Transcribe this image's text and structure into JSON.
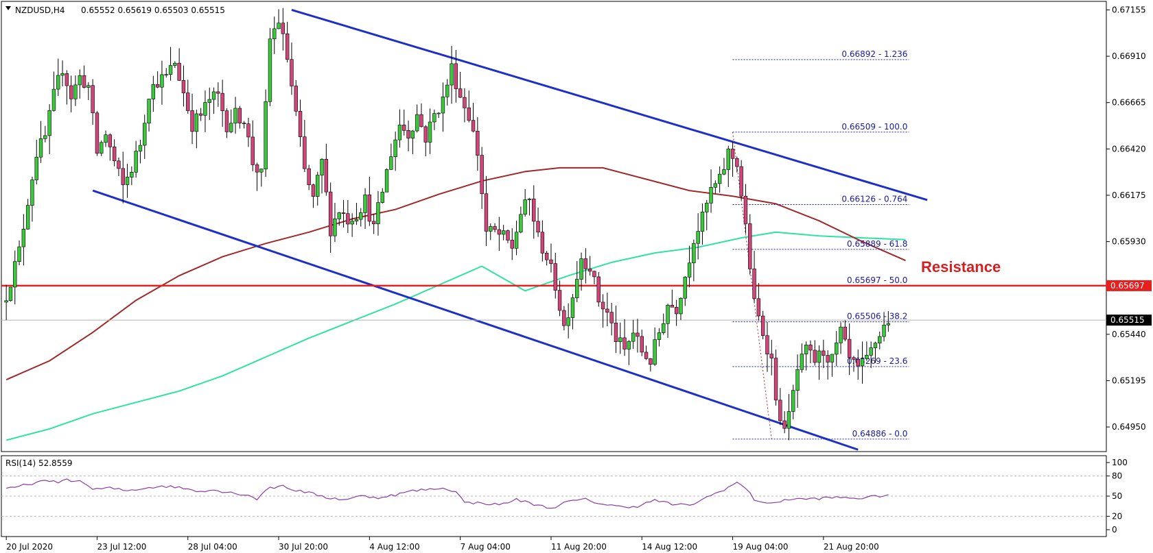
{
  "header": {
    "symbol": "NZDUSD,H4",
    "ohlc": "0.65552 0.65619 0.65503 0.65515"
  },
  "rsi_header": {
    "label": "RSI(14) 52.8559"
  },
  "annotations": {
    "resistance_label": "Resistance"
  },
  "colors": {
    "bull": "#3cc83c",
    "bear": "#d0457a",
    "channel": "#1c2fc8",
    "ma100": "#a02828",
    "ma200": "#2ee2a0",
    "resistance": "#e62020",
    "fib": "#1a1aa0",
    "rsi_line": "#8a3ca6"
  },
  "chart_data": [
    {
      "type": "candlestick",
      "title": "NZDUSD,H4",
      "ylim": [
        0.6482,
        0.672
      ],
      "y_ticks": [
        "0.67155",
        "0.66910",
        "0.66665",
        "0.66420",
        "0.66175",
        "0.65930",
        "0.65440",
        "0.65195",
        "0.64950"
      ],
      "y_tick_values": [
        0.67155,
        0.6691,
        0.66665,
        0.6642,
        0.66175,
        0.6593,
        0.6544,
        0.65195,
        0.6495
      ],
      "price_markers": [
        {
          "label": "0.65697",
          "value": 0.65697,
          "style": "resistance"
        },
        {
          "label": "0.65515",
          "value": 0.65515,
          "style": "current"
        }
      ],
      "x_ticks": [
        {
          "label": "20 Jul 2020",
          "index": 0
        },
        {
          "label": "23 Jul 12:00",
          "index": 21
        },
        {
          "label": "28 Jul 04:00",
          "index": 42
        },
        {
          "label": "30 Jul 20:00",
          "index": 63
        },
        {
          "label": "4 Aug 12:00",
          "index": 84
        },
        {
          "label": "7 Aug 04:00",
          "index": 105
        },
        {
          "label": "11 Aug 20:00",
          "index": 126
        },
        {
          "label": "14 Aug 12:00",
          "index": 147
        },
        {
          "label": "19 Aug 04:00",
          "index": 168
        },
        {
          "label": "21 Aug 20:00",
          "index": 189
        }
      ],
      "candle_anchors": [
        [
          0,
          0.6565
        ],
        [
          3,
          0.6588
        ],
        [
          5,
          0.6615
        ],
        [
          7,
          0.664
        ],
        [
          9,
          0.6648
        ],
        [
          11,
          0.667
        ],
        [
          13,
          0.6685
        ],
        [
          15,
          0.667
        ],
        [
          17,
          0.668
        ],
        [
          19,
          0.6675
        ],
        [
          21,
          0.664
        ],
        [
          23,
          0.665
        ],
        [
          25,
          0.6635
        ],
        [
          27,
          0.6622
        ],
        [
          29,
          0.6632
        ],
        [
          31,
          0.6645
        ],
        [
          33,
          0.6672
        ],
        [
          35,
          0.6678
        ],
        [
          37,
          0.668
        ],
        [
          39,
          0.6688
        ],
        [
          41,
          0.6672
        ],
        [
          43,
          0.6655
        ],
        [
          45,
          0.666
        ],
        [
          47,
          0.6668
        ],
        [
          49,
          0.667
        ],
        [
          51,
          0.6655
        ],
        [
          53,
          0.666
        ],
        [
          55,
          0.6658
        ],
        [
          57,
          0.6635
        ],
        [
          59,
          0.6628
        ],
        [
          61,
          0.67
        ],
        [
          63,
          0.671
        ],
        [
          65,
          0.669
        ],
        [
          67,
          0.666
        ],
        [
          69,
          0.663
        ],
        [
          71,
          0.6615
        ],
        [
          73,
          0.6635
        ],
        [
          75,
          0.66
        ],
        [
          77,
          0.661
        ],
        [
          79,
          0.6605
        ],
        [
          81,
          0.6608
        ],
        [
          83,
          0.6615
        ],
        [
          85,
          0.66
        ],
        [
          87,
          0.662
        ],
        [
          89,
          0.664
        ],
        [
          91,
          0.6655
        ],
        [
          93,
          0.665
        ],
        [
          95,
          0.666
        ],
        [
          97,
          0.6648
        ],
        [
          99,
          0.666
        ],
        [
          101,
          0.6668
        ],
        [
          103,
          0.6685
        ],
        [
          105,
          0.667
        ],
        [
          107,
          0.666
        ],
        [
          109,
          0.664
        ],
        [
          111,
          0.6598
        ],
        [
          113,
          0.6598
        ],
        [
          115,
          0.6595
        ],
        [
          117,
          0.659
        ],
        [
          119,
          0.6608
        ],
        [
          121,
          0.6615
        ],
        [
          123,
          0.6595
        ],
        [
          125,
          0.6585
        ],
        [
          127,
          0.657
        ],
        [
          129,
          0.6548
        ],
        [
          131,
          0.6565
        ],
        [
          133,
          0.6585
        ],
        [
          135,
          0.658
        ],
        [
          137,
          0.6562
        ],
        [
          139,
          0.6555
        ],
        [
          141,
          0.6542
        ],
        [
          143,
          0.6535
        ],
        [
          145,
          0.6545
        ],
        [
          147,
          0.6535
        ],
        [
          149,
          0.653
        ],
        [
          151,
          0.6545
        ],
        [
          153,
          0.656
        ],
        [
          155,
          0.6558
        ],
        [
          157,
          0.6575
        ],
        [
          159,
          0.6595
        ],
        [
          161,
          0.6605
        ],
        [
          163,
          0.662
        ],
        [
          165,
          0.6625
        ],
        [
          167,
          0.664
        ],
        [
          169,
          0.6635
        ],
        [
          171,
          0.66
        ],
        [
          173,
          0.656
        ],
        [
          175,
          0.6545
        ],
        [
          177,
          0.653
        ],
        [
          179,
          0.6495
        ],
        [
          181,
          0.65
        ],
        [
          183,
          0.6525
        ],
        [
          185,
          0.6535
        ],
        [
          187,
          0.653
        ],
        [
          189,
          0.6535
        ],
        [
          191,
          0.653
        ],
        [
          193,
          0.6545
        ],
        [
          195,
          0.653
        ],
        [
          197,
          0.6525
        ],
        [
          199,
          0.653
        ],
        [
          201,
          0.654
        ],
        [
          203,
          0.6548
        ],
        [
          204,
          0.6552
        ]
      ],
      "moving_average_100": [
        [
          0,
          0.652
        ],
        [
          10,
          0.653
        ],
        [
          20,
          0.6545
        ],
        [
          30,
          0.6562
        ],
        [
          40,
          0.6575
        ],
        [
          50,
          0.6585
        ],
        [
          60,
          0.6592
        ],
        [
          70,
          0.6598
        ],
        [
          80,
          0.6605
        ],
        [
          90,
          0.661
        ],
        [
          100,
          0.6618
        ],
        [
          110,
          0.6625
        ],
        [
          120,
          0.663
        ],
        [
          128,
          0.6632
        ],
        [
          138,
          0.6632
        ],
        [
          148,
          0.6626
        ],
        [
          158,
          0.662
        ],
        [
          168,
          0.6617
        ],
        [
          178,
          0.6613
        ],
        [
          188,
          0.6604
        ],
        [
          198,
          0.6593
        ],
        [
          208,
          0.6583
        ]
      ],
      "moving_average_200": [
        [
          0,
          0.6488
        ],
        [
          10,
          0.6494
        ],
        [
          20,
          0.6502
        ],
        [
          30,
          0.6508
        ],
        [
          40,
          0.6514
        ],
        [
          50,
          0.6522
        ],
        [
          60,
          0.6532
        ],
        [
          70,
          0.6542
        ],
        [
          80,
          0.6551
        ],
        [
          90,
          0.656
        ],
        [
          100,
          0.657
        ],
        [
          110,
          0.658
        ],
        [
          120,
          0.6567
        ],
        [
          130,
          0.6575
        ],
        [
          140,
          0.6582
        ],
        [
          150,
          0.6587
        ],
        [
          160,
          0.659
        ],
        [
          170,
          0.6595
        ],
        [
          178,
          0.6598
        ],
        [
          188,
          0.6596
        ],
        [
          198,
          0.6595
        ],
        [
          208,
          0.6594
        ]
      ],
      "channel_upper": [
        [
          66,
          0.67155
        ],
        [
          213,
          0.6615
        ]
      ],
      "channel_lower": [
        [
          20,
          0.662
        ],
        [
          197,
          0.6483
        ]
      ],
      "resistance_level": 0.65697,
      "fibonacci": [
        {
          "label": "0.66892 - 1.236",
          "value": 0.66892
        },
        {
          "label": "0.66509 - 100.0",
          "value": 0.66509
        },
        {
          "label": "0.66126 - 0.764",
          "value": 0.66126
        },
        {
          "label": "0.65889 - 61.8",
          "value": 0.65889
        },
        {
          "label": "0.65697 - 50.0",
          "value": 0.65697
        },
        {
          "label": "0.65506 - 38.2",
          "value": 0.65506
        },
        {
          "label": "0.65269 - 23.6",
          "value": 0.65269
        },
        {
          "label": "0.64886 - 0.0",
          "value": 0.64886
        }
      ],
      "fib_swing": {
        "high_index": 168,
        "high": 0.66509,
        "low_index": 177,
        "low": 0.64886
      }
    },
    {
      "type": "line",
      "title": "RSI(14) 52.8559",
      "ylim": [
        0,
        100
      ],
      "y_ticks": [
        "100",
        "80",
        "50",
        "20",
        "0"
      ],
      "y_tick_values": [
        100,
        80,
        50,
        20,
        0
      ],
      "levels": [
        80,
        50,
        20
      ],
      "rsi_anchors": [
        [
          0,
          60
        ],
        [
          4,
          66
        ],
        [
          8,
          72
        ],
        [
          12,
          71
        ],
        [
          14,
          75
        ],
        [
          18,
          70
        ],
        [
          20,
          60
        ],
        [
          24,
          62
        ],
        [
          28,
          58
        ],
        [
          32,
          62
        ],
        [
          36,
          65
        ],
        [
          40,
          63
        ],
        [
          44,
          58
        ],
        [
          48,
          59
        ],
        [
          52,
          55
        ],
        [
          56,
          52
        ],
        [
          58,
          45
        ],
        [
          60,
          60
        ],
        [
          64,
          66
        ],
        [
          66,
          60
        ],
        [
          70,
          55
        ],
        [
          74,
          48
        ],
        [
          78,
          45
        ],
        [
          82,
          50
        ],
        [
          86,
          48
        ],
        [
          90,
          52
        ],
        [
          94,
          58
        ],
        [
          98,
          60
        ],
        [
          100,
          62
        ],
        [
          104,
          58
        ],
        [
          106,
          40
        ],
        [
          110,
          40
        ],
        [
          114,
          37
        ],
        [
          118,
          45
        ],
        [
          122,
          38
        ],
        [
          126,
          32
        ],
        [
          130,
          42
        ],
        [
          134,
          45
        ],
        [
          138,
          38
        ],
        [
          142,
          34
        ],
        [
          146,
          35
        ],
        [
          150,
          44
        ],
        [
          154,
          38
        ],
        [
          158,
          36
        ],
        [
          162,
          48
        ],
        [
          166,
          60
        ],
        [
          169,
          70
        ],
        [
          171,
          62
        ],
        [
          173,
          45
        ],
        [
          177,
          38
        ],
        [
          180,
          45
        ],
        [
          186,
          46
        ],
        [
          192,
          48
        ],
        [
          198,
          47
        ],
        [
          204,
          52
        ]
      ],
      "value": 52.8559
    }
  ]
}
